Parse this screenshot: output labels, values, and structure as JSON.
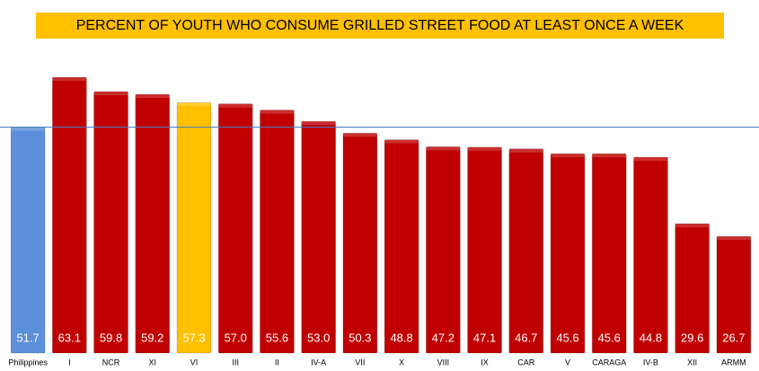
{
  "chart_data": {
    "type": "bar",
    "title": "PERCENT OF YOUTH WHO CONSUME GRILLED STREET FOOD AT LEAST ONCE A WEEK",
    "categories": [
      "Philippines",
      "I",
      "NCR",
      "XI",
      "VI",
      "III",
      "II",
      "IV-A",
      "VII",
      "X",
      "VIII",
      "IX",
      "CAR",
      "V",
      "CARAGA",
      "IV-B",
      "XII",
      "ARMM"
    ],
    "values": [
      51.7,
      63.1,
      59.8,
      59.2,
      57.3,
      57.0,
      55.6,
      53.0,
      50.3,
      48.8,
      47.2,
      47.1,
      46.7,
      45.6,
      45.6,
      44.8,
      29.6,
      26.7
    ],
    "value_labels": [
      "51.7",
      "63.1",
      "59.8",
      "59.2",
      "57.3",
      "57.0",
      "55.6",
      "53.0",
      "50.3",
      "48.8",
      "47.2",
      "47.1",
      "46.7",
      "45.6",
      "45.6",
      "44.8",
      "29.6",
      "26.7"
    ],
    "colors": [
      "#5b8fd9",
      "#c00000",
      "#c00000",
      "#c00000",
      "#ffc000",
      "#c00000",
      "#c00000",
      "#c00000",
      "#c00000",
      "#c00000",
      "#c00000",
      "#c00000",
      "#c00000",
      "#c00000",
      "#c00000",
      "#c00000",
      "#c00000",
      "#c00000"
    ]
  }
}
